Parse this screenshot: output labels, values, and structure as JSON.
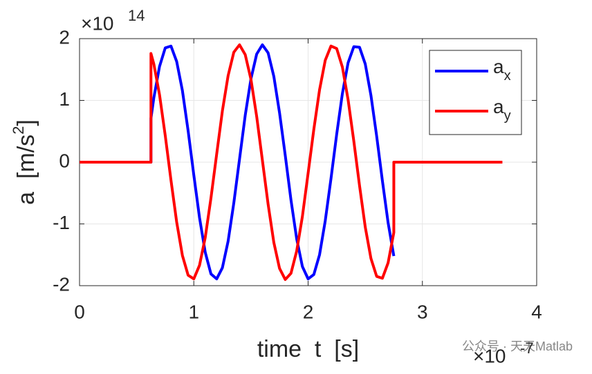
{
  "chart_data": {
    "type": "line",
    "xlabel": "time  t  [s]",
    "ylabel": {
      "text": "a  [m/s",
      "sup": "2",
      "end": "]"
    },
    "x_multiplier": {
      "base": "×10",
      "power": "-7"
    },
    "y_multiplier": {
      "base": "×10",
      "power": "14"
    },
    "x": [
      0,
      0.625,
      0.625,
      0.65,
      0.7,
      0.75,
      0.8,
      0.85,
      0.9,
      0.95,
      1.0,
      1.05,
      1.1,
      1.15,
      1.2,
      1.25,
      1.3,
      1.35,
      1.4,
      1.45,
      1.5,
      1.55,
      1.6,
      1.65,
      1.7,
      1.75,
      1.8,
      1.85,
      1.9,
      1.95,
      2.0,
      2.05,
      2.1,
      2.15,
      2.2,
      2.25,
      2.3,
      2.35,
      2.4,
      2.45,
      2.5,
      2.55,
      2.6,
      2.65,
      2.7,
      2.75,
      2.75,
      3.7
    ],
    "series": [
      {
        "name": "ax",
        "name_base": "a",
        "name_sub": "x",
        "color": "#0000ff",
        "values": [
          0,
          0,
          0.71,
          1.04,
          1.55,
          1.85,
          1.88,
          1.63,
          1.16,
          0.51,
          -0.21,
          -0.9,
          -1.46,
          -1.81,
          -1.89,
          -1.71,
          -1.28,
          -0.66,
          0.05,
          0.76,
          1.35,
          1.75,
          1.9,
          1.77,
          1.39,
          0.8,
          0.11,
          -0.61,
          -1.24,
          -1.69,
          -1.89,
          -1.82,
          -1.5,
          -0.95,
          -0.27,
          0.45,
          1.11,
          1.61,
          1.87,
          1.86,
          1.59,
          1.08,
          0.42,
          -0.3,
          -0.98,
          -1.52,
          null,
          null
        ]
      },
      {
        "name": "ay",
        "name_base": "a",
        "name_sub": "y",
        "color": "#ff0000",
        "values": [
          0,
          0,
          1.76,
          1.59,
          1.09,
          0.43,
          -0.29,
          -0.97,
          -1.51,
          -1.83,
          -1.89,
          -1.67,
          -1.22,
          -0.58,
          0.13,
          0.83,
          1.4,
          1.78,
          1.9,
          1.74,
          1.34,
          0.74,
          0.03,
          -0.68,
          -1.3,
          -1.72,
          -1.9,
          -1.8,
          -1.44,
          -0.88,
          -0.18,
          0.53,
          1.17,
          1.65,
          1.88,
          1.84,
          1.54,
          1.01,
          0.34,
          -0.38,
          -1.05,
          -1.56,
          -1.85,
          -1.88,
          -1.63,
          -1.14,
          0,
          0
        ]
      }
    ],
    "xlim": [
      0,
      4
    ],
    "xticks": [
      0,
      1,
      2,
      3,
      4
    ],
    "ylim": [
      -2,
      2
    ],
    "yticks": [
      -2,
      -1,
      0,
      1,
      2
    ],
    "grid": true,
    "legend": "upper right",
    "watermark": "公众号 · 天天Matlab"
  }
}
